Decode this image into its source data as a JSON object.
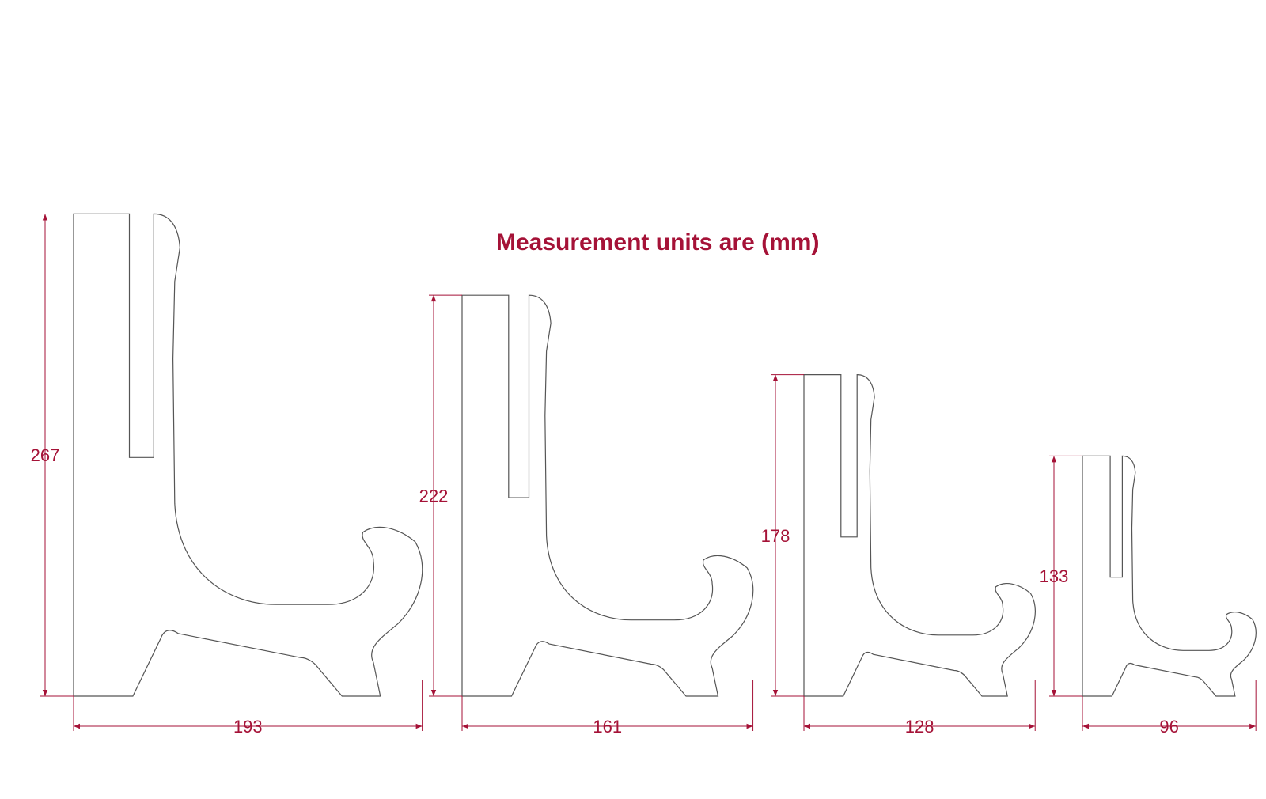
{
  "title": "Measurement units are (mm)",
  "colors": {
    "dimension": "#a51237",
    "outline": "#555555",
    "background": "#ffffff"
  },
  "stands": [
    {
      "id": "stand-1",
      "height_label": "267",
      "width_label": "193",
      "height_mm": 267,
      "width_mm": 193
    },
    {
      "id": "stand-2",
      "height_label": "222",
      "width_label": "161",
      "height_mm": 222,
      "width_mm": 161
    },
    {
      "id": "stand-3",
      "height_label": "178",
      "width_label": "128",
      "height_mm": 178,
      "width_mm": 128
    },
    {
      "id": "stand-4",
      "height_label": "133",
      "width_label": "96",
      "height_mm": 133,
      "width_mm": 96
    }
  ]
}
